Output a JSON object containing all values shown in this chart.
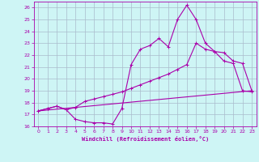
{
  "xlabel": "Windchill (Refroidissement éolien,°C)",
  "background_color": "#cef5f5",
  "line_color": "#aa00aa",
  "grid_color": "#aabbcc",
  "xlim": [
    -0.5,
    23.5
  ],
  "ylim": [
    16,
    26.5
  ],
  "xticks": [
    0,
    1,
    2,
    3,
    4,
    5,
    6,
    7,
    8,
    9,
    10,
    11,
    12,
    13,
    14,
    15,
    16,
    17,
    18,
    19,
    20,
    21,
    22,
    23
  ],
  "yticks": [
    16,
    17,
    18,
    19,
    20,
    21,
    22,
    23,
    24,
    25,
    26
  ],
  "curve1_x": [
    0,
    1,
    2,
    3,
    4,
    5,
    6,
    7,
    8,
    9,
    10,
    11,
    12,
    13,
    14,
    15,
    16,
    17,
    18,
    19,
    20,
    21,
    22,
    23
  ],
  "curve1_y": [
    17.3,
    17.5,
    17.7,
    17.4,
    16.6,
    16.4,
    16.3,
    16.3,
    16.2,
    17.5,
    21.2,
    22.5,
    22.8,
    23.4,
    22.7,
    25.0,
    26.2,
    25.0,
    23.0,
    22.3,
    21.5,
    21.3,
    19.0,
    18.9
  ],
  "curve2_x": [
    0,
    1,
    2,
    3,
    4,
    5,
    6,
    7,
    8,
    9,
    10,
    11,
    12,
    13,
    14,
    15,
    16,
    17,
    18,
    19,
    20,
    21,
    22,
    23
  ],
  "curve2_y": [
    17.3,
    17.5,
    17.7,
    17.4,
    17.6,
    18.1,
    18.3,
    18.5,
    18.7,
    18.9,
    19.2,
    19.5,
    19.8,
    20.1,
    20.4,
    20.8,
    21.2,
    23.0,
    22.5,
    22.3,
    22.2,
    21.5,
    21.3,
    19.0
  ],
  "curve3_x": [
    0,
    23
  ],
  "curve3_y": [
    17.3,
    19.0
  ]
}
